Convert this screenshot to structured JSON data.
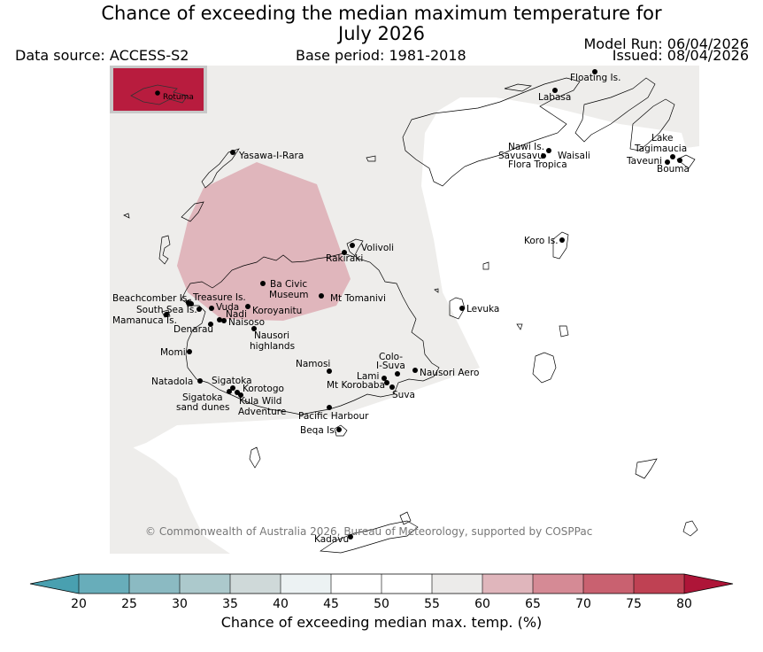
{
  "header": {
    "title_line1": "Chance of exceeding the median maximum temperature for",
    "title_line2": "July 2026",
    "data_source": "Data source: ACCESS-S2",
    "base_period": "Base period: 1981-2018",
    "model_run": "Model Run: 06/04/2026",
    "issued": "Issued: 08/04/2026"
  },
  "inset": {
    "label": "Rotuma"
  },
  "places": [
    {
      "id": "floating",
      "label": "Floating Is."
    },
    {
      "id": "labasa",
      "label": "Labasa"
    },
    {
      "id": "yasawa",
      "label": "Yasawa-I-Rara"
    },
    {
      "id": "nawi",
      "label": "Nawi Is."
    },
    {
      "id": "savusavu",
      "label": "Savusavu"
    },
    {
      "id": "waisali",
      "label": "Waisali"
    },
    {
      "id": "flora",
      "label": "Flora Tropica"
    },
    {
      "id": "lake_tag_1",
      "label": "Lake"
    },
    {
      "id": "lake_tag_2",
      "label": "Tagimaucia"
    },
    {
      "id": "taveuni",
      "label": "Taveuni"
    },
    {
      "id": "bouma",
      "label": "Bouma"
    },
    {
      "id": "koro",
      "label": "Koro Is."
    },
    {
      "id": "volivoli",
      "label": "Volivoli"
    },
    {
      "id": "rakiraki",
      "label": "Rakiraki"
    },
    {
      "id": "bacivic_1",
      "label": "Ba Civic"
    },
    {
      "id": "bacivic_2",
      "label": "Museum"
    },
    {
      "id": "tomanivi",
      "label": "Mt Tomanivi"
    },
    {
      "id": "beachcomber",
      "label": "Beachcomber Is."
    },
    {
      "id": "treasure",
      "label": "Treasure Is."
    },
    {
      "id": "southsea",
      "label": "South Sea Is."
    },
    {
      "id": "vuda",
      "label": "Vuda"
    },
    {
      "id": "koroyanitu",
      "label": "Koroyanitu"
    },
    {
      "id": "nadi",
      "label": "Nadi"
    },
    {
      "id": "mamanuca",
      "label": "Mamanuca Is."
    },
    {
      "id": "naisoso",
      "label": "Naisoso"
    },
    {
      "id": "denarau",
      "label": "Denarau"
    },
    {
      "id": "nausori_h1",
      "label": "Nausori"
    },
    {
      "id": "nausori_h2",
      "label": "highlands"
    },
    {
      "id": "levuka",
      "label": "Levuka"
    },
    {
      "id": "momi",
      "label": "Momi"
    },
    {
      "id": "namosi",
      "label": "Namosi"
    },
    {
      "id": "colo_1",
      "label": "Colo-"
    },
    {
      "id": "colo_2",
      "label": "I-Suva"
    },
    {
      "id": "lami",
      "label": "Lami"
    },
    {
      "id": "nausori_aero",
      "label": "Nausori Aero"
    },
    {
      "id": "korobaba",
      "label": "Mt Korobaba"
    },
    {
      "id": "suva",
      "label": "Suva"
    },
    {
      "id": "natadola",
      "label": "Natadola"
    },
    {
      "id": "sigatoka",
      "label": "Sigatoka"
    },
    {
      "id": "korotogo",
      "label": "Korotogo"
    },
    {
      "id": "sigatoka_d1",
      "label": "Sigatoka"
    },
    {
      "id": "sigatoka_d2",
      "label": "sand dunes"
    },
    {
      "id": "kula_1",
      "label": "Kula Wild"
    },
    {
      "id": "kula_2",
      "label": "Adventure"
    },
    {
      "id": "pacific",
      "label": "Pacific Harbour"
    },
    {
      "id": "beqa",
      "label": "Beqa Is."
    },
    {
      "id": "kadavu",
      "label": "Kadavu"
    }
  ],
  "copyright": "© Commonwealth of Australia 2026, Bureau of Meteorology, supported by COSPPac",
  "colorbar": {
    "label": "Chance of exceeding median max. temp. (%)",
    "ticks": [
      "20",
      "25",
      "30",
      "35",
      "40",
      "45",
      "50",
      "55",
      "60",
      "65",
      "70",
      "75",
      "80"
    ],
    "colors": [
      "#49a0b0",
      "#68adba",
      "#8bbac2",
      "#acc9cc",
      "#cfd9d9",
      "#ecf2f3",
      "#ffffff",
      "#ffffff",
      "#ecebea",
      "#e0b6bc",
      "#d58a95",
      "#c96170",
      "#bf4153",
      "#ae1538"
    ],
    "below_color": "#49a0b0",
    "above_color": "#ae1538"
  },
  "map_colors": {
    "neutral": "#eeedeb",
    "anomaly": "#e0b6bc",
    "inset_fill": "#b81c3e"
  }
}
